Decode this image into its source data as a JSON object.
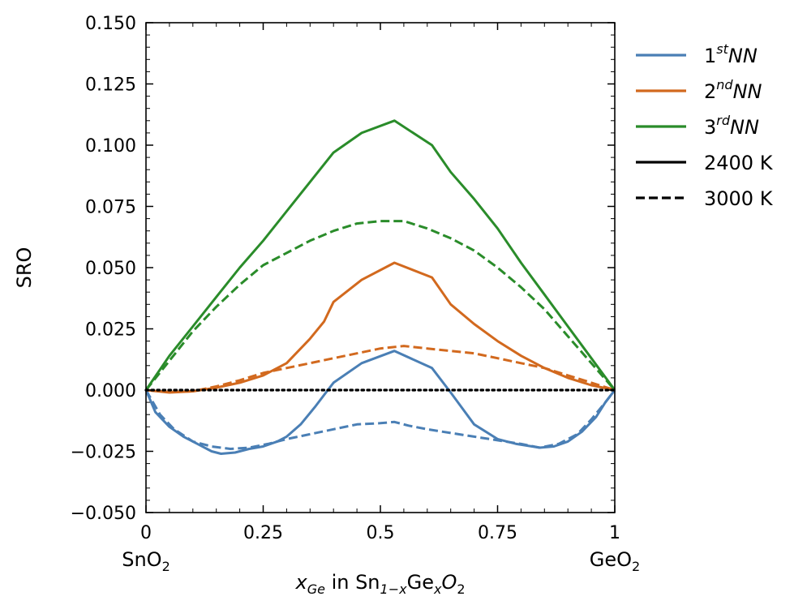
{
  "chart_data": {
    "type": "line",
    "ylabel": "SRO",
    "xlabel": {
      "var": "x",
      "var_sub": "Ge",
      "text_in": " in Sn",
      "sub1": "1−x",
      "text_ge": "Ge",
      "sub2": "x",
      "text_o": "O",
      "sub3": "2"
    },
    "xlim": [
      0,
      1
    ],
    "ylim": [
      -0.05,
      0.15
    ],
    "x_ticks": [
      {
        "value": 0,
        "label": "0"
      },
      {
        "value": 0.25,
        "label": "0.25"
      },
      {
        "value": 0.5,
        "label": "0.5"
      },
      {
        "value": 0.75,
        "label": "0.75"
      },
      {
        "value": 1,
        "label": "1"
      }
    ],
    "y_ticks": [
      {
        "value": 0.15,
        "label": "0.150"
      },
      {
        "value": 0.125,
        "label": "0.125"
      },
      {
        "value": 0.1,
        "label": "0.100"
      },
      {
        "value": 0.075,
        "label": "0.075"
      },
      {
        "value": 0.05,
        "label": "0.050"
      },
      {
        "value": 0.025,
        "label": "0.025"
      },
      {
        "value": 0.0,
        "label": "0.000"
      },
      {
        "value": -0.025,
        "label": "−0.025"
      },
      {
        "value": -0.05,
        "label": "−0.050"
      }
    ],
    "end_labels": {
      "left": {
        "base": "SnO",
        "sub": "2"
      },
      "right": {
        "base": "GeO",
        "sub": "2"
      }
    },
    "legend": {
      "position": "outside-right",
      "entries": [
        {
          "base": "1",
          "sup": "st",
          "tail": "NN",
          "color": "#4a7fb5",
          "dash": "solid"
        },
        {
          "base": "2",
          "sup": "nd",
          "tail": "NN",
          "color": "#d2691e",
          "dash": "solid"
        },
        {
          "base": "3",
          "sup": "rd",
          "tail": "NN",
          "color": "#2a8c2a",
          "dash": "solid"
        },
        {
          "label": "2400 K",
          "color": "#000000",
          "dash": "solid"
        },
        {
          "label": "3000 K",
          "color": "#000000",
          "dash": "dashed"
        }
      ]
    },
    "colors": {
      "nn1": "#4a7fb5",
      "nn2": "#d2691e",
      "nn3": "#2a8c2a"
    },
    "series": [
      {
        "key": "nn1-2400",
        "color": "#4a7fb5",
        "dash": "solid",
        "x": [
          0,
          0.02,
          0.05,
          0.08,
          0.11,
          0.14,
          0.16,
          0.19,
          0.22,
          0.25,
          0.28,
          0.3,
          0.33,
          0.36,
          0.38,
          0.4,
          0.46,
          0.53,
          0.61,
          0.65,
          0.7,
          0.75,
          0.79,
          0.84,
          0.87,
          0.9,
          0.93,
          0.96,
          0.98,
          1.0
        ],
        "y": [
          0,
          -0.009,
          -0.015,
          -0.019,
          -0.022,
          -0.025,
          -0.026,
          -0.0255,
          -0.024,
          -0.023,
          -0.021,
          -0.019,
          -0.014,
          -0.007,
          -0.002,
          0.003,
          0.011,
          0.016,
          0.009,
          -0.001,
          -0.014,
          -0.02,
          -0.022,
          -0.0235,
          -0.023,
          -0.021,
          -0.017,
          -0.011,
          -0.005,
          0
        ]
      },
      {
        "key": "nn1-3000",
        "color": "#4a7fb5",
        "dash": "dashed",
        "x": [
          0,
          0.03,
          0.06,
          0.1,
          0.14,
          0.18,
          0.22,
          0.26,
          0.3,
          0.35,
          0.4,
          0.45,
          0.5,
          0.53,
          0.56,
          0.6,
          0.65,
          0.7,
          0.75,
          0.8,
          0.84,
          0.88,
          0.92,
          0.95,
          0.98,
          1.0
        ],
        "y": [
          0,
          -0.01,
          -0.016,
          -0.021,
          -0.023,
          -0.024,
          -0.0235,
          -0.022,
          -0.02,
          -0.018,
          -0.016,
          -0.014,
          -0.0135,
          -0.013,
          -0.0145,
          -0.016,
          -0.0175,
          -0.019,
          -0.0205,
          -0.022,
          -0.0235,
          -0.022,
          -0.018,
          -0.012,
          -0.005,
          0
        ]
      },
      {
        "key": "nn2-2400",
        "color": "#d2691e",
        "dash": "solid",
        "x": [
          0,
          0.05,
          0.1,
          0.15,
          0.2,
          0.25,
          0.3,
          0.35,
          0.38,
          0.4,
          0.46,
          0.53,
          0.61,
          0.65,
          0.7,
          0.75,
          0.8,
          0.85,
          0.9,
          0.95,
          1.0
        ],
        "y": [
          0,
          -0.001,
          -0.0005,
          0.001,
          0.003,
          0.006,
          0.011,
          0.021,
          0.028,
          0.036,
          0.045,
          0.052,
          0.046,
          0.035,
          0.027,
          0.02,
          0.014,
          0.009,
          0.005,
          0.002,
          0
        ]
      },
      {
        "key": "nn2-3000",
        "color": "#d2691e",
        "dash": "dashed",
        "x": [
          0,
          0.05,
          0.1,
          0.15,
          0.2,
          0.25,
          0.3,
          0.35,
          0.4,
          0.45,
          0.5,
          0.55,
          0.6,
          0.65,
          0.7,
          0.75,
          0.8,
          0.85,
          0.9,
          0.95,
          1.0
        ],
        "y": [
          0,
          -0.0008,
          -0.0005,
          0.0015,
          0.004,
          0.007,
          0.009,
          0.011,
          0.013,
          0.015,
          0.017,
          0.018,
          0.017,
          0.016,
          0.015,
          0.013,
          0.011,
          0.009,
          0.006,
          0.003,
          0
        ]
      },
      {
        "key": "nn3-2400",
        "color": "#2a8c2a",
        "dash": "solid",
        "x": [
          0,
          0.05,
          0.1,
          0.15,
          0.2,
          0.25,
          0.3,
          0.35,
          0.4,
          0.46,
          0.53,
          0.61,
          0.65,
          0.7,
          0.75,
          0.8,
          0.85,
          0.9,
          0.95,
          1.0
        ],
        "y": [
          0,
          0.014,
          0.026,
          0.038,
          0.05,
          0.061,
          0.073,
          0.085,
          0.097,
          0.105,
          0.11,
          0.1,
          0.089,
          0.078,
          0.066,
          0.052,
          0.039,
          0.026,
          0.013,
          0
        ]
      },
      {
        "key": "nn3-3000",
        "color": "#2a8c2a",
        "dash": "dashed",
        "x": [
          0,
          0.05,
          0.1,
          0.15,
          0.2,
          0.25,
          0.3,
          0.35,
          0.4,
          0.45,
          0.5,
          0.55,
          0.6,
          0.65,
          0.7,
          0.75,
          0.8,
          0.85,
          0.9,
          0.95,
          1.0
        ],
        "y": [
          0,
          0.012,
          0.024,
          0.034,
          0.043,
          0.051,
          0.056,
          0.061,
          0.065,
          0.068,
          0.069,
          0.069,
          0.066,
          0.062,
          0.057,
          0.05,
          0.042,
          0.033,
          0.022,
          0.011,
          0
        ]
      },
      {
        "key": "zero",
        "color": "#000000",
        "dash": "dotted",
        "x": [
          0,
          1
        ],
        "y": [
          0,
          0
        ]
      }
    ]
  }
}
